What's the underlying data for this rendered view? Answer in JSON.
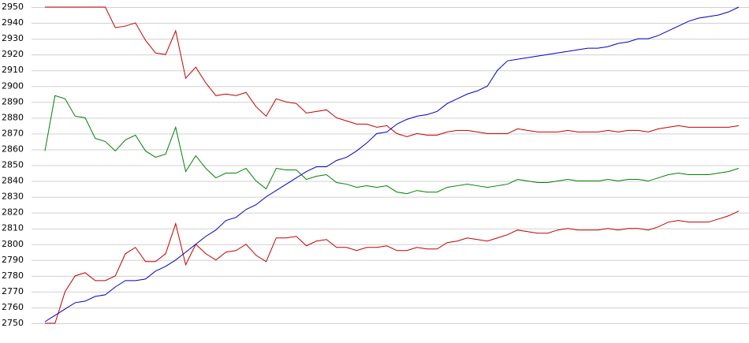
{
  "chart_data": {
    "type": "line",
    "ylim": [
      2750,
      2950
    ],
    "yticks": [
      2750,
      2760,
      2770,
      2780,
      2790,
      2800,
      2810,
      2820,
      2830,
      2840,
      2850,
      2860,
      2870,
      2880,
      2890,
      2900,
      2910,
      2920,
      2930,
      2940,
      2950
    ],
    "grid": true,
    "series": [
      {
        "color": "#c00000",
        "values": [
          2950,
          2950,
          2950,
          2950,
          2950,
          2950,
          2950,
          2937,
          2938,
          2940,
          2929,
          2921,
          2920,
          2935,
          2905,
          2912,
          2902,
          2894,
          2895,
          2894,
          2896,
          2887,
          2881,
          2892,
          2890,
          2889,
          2883,
          2884,
          2885,
          2880,
          2878,
          2876,
          2876,
          2874,
          2875,
          2870,
          2868,
          2870,
          2869,
          2869,
          2871,
          2872,
          2872,
          2871,
          2870,
          2870,
          2870,
          2873,
          2872,
          2871,
          2871,
          2871,
          2872,
          2871,
          2871,
          2871,
          2872,
          2871,
          2872,
          2872,
          2871,
          2873,
          2874,
          2875,
          2874,
          2874,
          2874,
          2874,
          2874,
          2875
        ]
      },
      {
        "color": "#008000",
        "values": [
          2859,
          2894,
          2892,
          2881,
          2880,
          2867,
          2865,
          2859,
          2866,
          2869,
          2859,
          2855,
          2857,
          2874,
          2846,
          2856,
          2848,
          2842,
          2845,
          2845,
          2848,
          2840,
          2835,
          2848,
          2847,
          2847,
          2841,
          2843,
          2844,
          2839,
          2838,
          2836,
          2837,
          2836,
          2837,
          2833,
          2832,
          2834,
          2833,
          2833,
          2836,
          2837,
          2838,
          2837,
          2836,
          2837,
          2838,
          2841,
          2840,
          2839,
          2839,
          2840,
          2841,
          2840,
          2840,
          2840,
          2841,
          2840,
          2841,
          2841,
          2840,
          2842,
          2844,
          2845,
          2844,
          2844,
          2844,
          2845,
          2846,
          2848
        ]
      },
      {
        "color": "#c00000",
        "values": [
          2750,
          2750,
          2770,
          2780,
          2782,
          2777,
          2777,
          2780,
          2794,
          2798,
          2789,
          2789,
          2794,
          2813,
          2787,
          2800,
          2794,
          2790,
          2795,
          2796,
          2800,
          2793,
          2789,
          2804,
          2804,
          2805,
          2799,
          2802,
          2803,
          2798,
          2798,
          2796,
          2798,
          2798,
          2799,
          2796,
          2796,
          2798,
          2797,
          2797,
          2801,
          2802,
          2804,
          2803,
          2802,
          2804,
          2806,
          2809,
          2808,
          2807,
          2807,
          2809,
          2810,
          2809,
          2809,
          2809,
          2810,
          2809,
          2810,
          2810,
          2809,
          2811,
          2814,
          2815,
          2814,
          2814,
          2814,
          2816,
          2818,
          2821
        ]
      },
      {
        "color": "#0000c0",
        "values": [
          2751,
          2755,
          2759,
          2763,
          2764,
          2767,
          2768,
          2773,
          2777,
          2777,
          2778,
          2783,
          2786,
          2790,
          2795,
          2800,
          2805,
          2809,
          2815,
          2817,
          2822,
          2825,
          2830,
          2834,
          2838,
          2842,
          2846,
          2849,
          2849,
          2853,
          2855,
          2859,
          2864,
          2870,
          2871,
          2876,
          2879,
          2881,
          2882,
          2884,
          2889,
          2892,
          2895,
          2897,
          2900,
          2910,
          2916,
          2917,
          2918,
          2919,
          2920,
          2921,
          2922,
          2923,
          2924,
          2924,
          2925,
          2927,
          2928,
          2930,
          2930,
          2932,
          2935,
          2938,
          2941,
          2943,
          2944,
          2945,
          2947,
          2950
        ]
      }
    ]
  }
}
